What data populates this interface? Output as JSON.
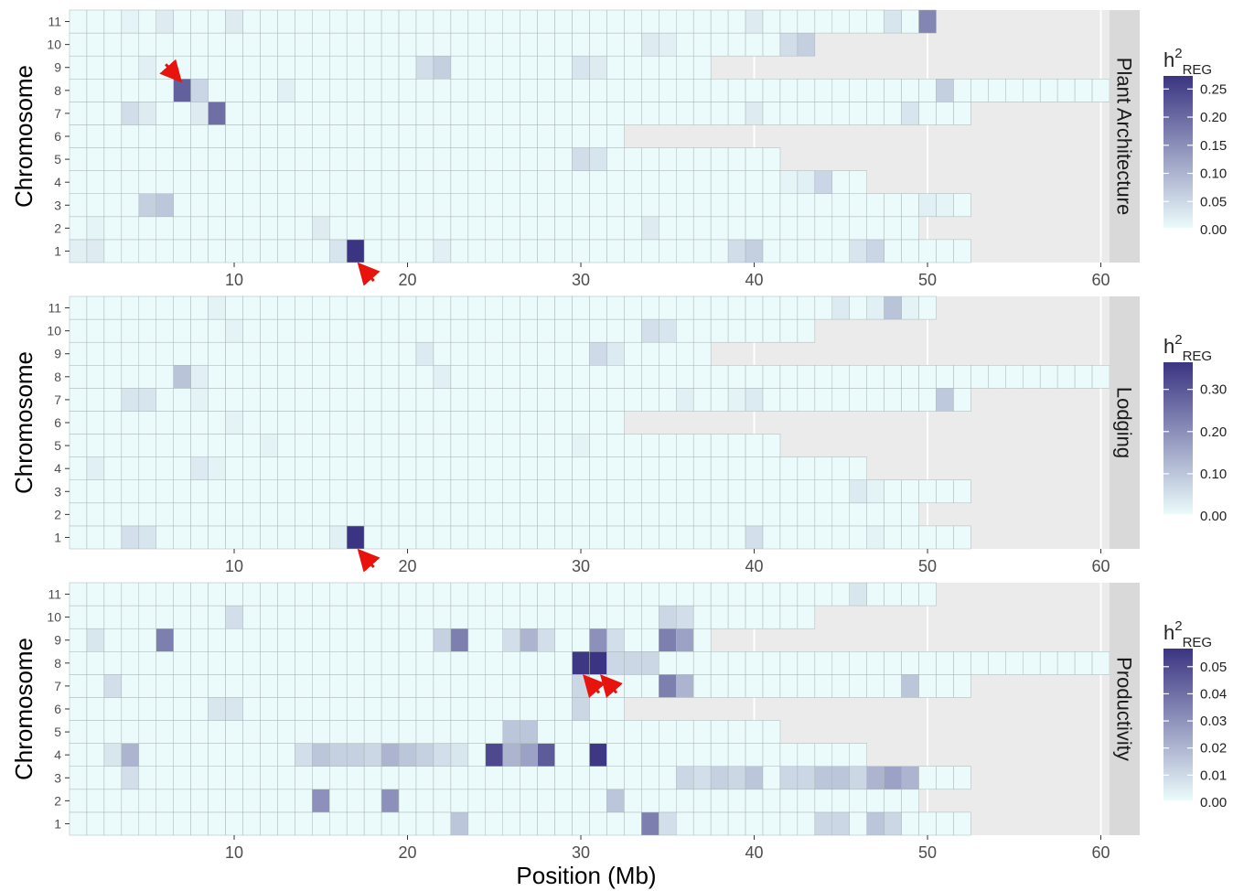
{
  "figure": {
    "ylabel": "Chromosome",
    "xlabel": "Position (Mb)"
  },
  "colors": {
    "low": "#ebfbfb",
    "high": "#3b3482",
    "missing": "#ebebeb",
    "strip": "#d9d9d9",
    "cell_border": "#a9b5b5",
    "arrow": "#e8130d"
  },
  "chart_data": [
    {
      "type": "heatmap",
      "panel_label": "Plant Architecture",
      "legend": {
        "title_main": "h",
        "title_sup": "2",
        "title_sub": "REG",
        "ticks": [
          "0.25",
          "0.20",
          "0.15",
          "0.10",
          "0.05",
          "0.00"
        ],
        "max": 0.27
      },
      "x_ticks": [
        10,
        20,
        30,
        40,
        50,
        60
      ],
      "y_ticks": [
        "1",
        "2",
        "3",
        "4",
        "5",
        "6",
        "7",
        "8",
        "9",
        "10",
        "11"
      ],
      "chromosome_length_mb": {
        "1": 52,
        "2": 49,
        "3": 52,
        "4": 46,
        "5": 41,
        "6": 32,
        "7": 52,
        "8": 60,
        "9": 37,
        "10": 43,
        "11": 50
      },
      "cells": [
        [
          1,
          17,
          0.27
        ],
        [
          1,
          40,
          0.06
        ],
        [
          1,
          39,
          0.04
        ],
        [
          1,
          47,
          0.05
        ],
        [
          1,
          46,
          0.03
        ],
        [
          1,
          16,
          0.03
        ],
        [
          1,
          2,
          0.02
        ],
        [
          1,
          1,
          0.015
        ],
        [
          1,
          22,
          0.015
        ],
        [
          2,
          15,
          0.02
        ],
        [
          2,
          34,
          0.02
        ],
        [
          2,
          2,
          0.01
        ],
        [
          3,
          5,
          0.06
        ],
        [
          3,
          6,
          0.07
        ],
        [
          3,
          50,
          0.015
        ],
        [
          3,
          51,
          0.01
        ],
        [
          4,
          44,
          0.05
        ],
        [
          4,
          43,
          0.015
        ],
        [
          4,
          42,
          0.01
        ],
        [
          5,
          30,
          0.04
        ],
        [
          5,
          31,
          0.03
        ],
        [
          7,
          9,
          0.19
        ],
        [
          7,
          4,
          0.04
        ],
        [
          7,
          8,
          0.02
        ],
        [
          7,
          5,
          0.02
        ],
        [
          7,
          40,
          0.02
        ],
        [
          7,
          49,
          0.03
        ],
        [
          8,
          7,
          0.21
        ],
        [
          8,
          8,
          0.05
        ],
        [
          8,
          51,
          0.06
        ],
        [
          8,
          13,
          0.015
        ],
        [
          9,
          21,
          0.04
        ],
        [
          9,
          22,
          0.06
        ],
        [
          9,
          30,
          0.03
        ],
        [
          9,
          31,
          0.02
        ],
        [
          9,
          5,
          0.015
        ],
        [
          10,
          42,
          0.04
        ],
        [
          10,
          43,
          0.06
        ],
        [
          10,
          34,
          0.02
        ],
        [
          10,
          35,
          0.015
        ],
        [
          11,
          50,
          0.16
        ],
        [
          11,
          48,
          0.03
        ],
        [
          11,
          40,
          0.02
        ],
        [
          11,
          10,
          0.02
        ],
        [
          11,
          6,
          0.02
        ],
        [
          11,
          4,
          0.01
        ]
      ],
      "arrows": [
        {
          "chr": 8,
          "pos": 7,
          "dir": "from-upper-left"
        },
        {
          "chr": 1,
          "pos": 17,
          "dir": "from-lower-right"
        }
      ]
    },
    {
      "type": "heatmap",
      "panel_label": "Lodging",
      "legend": {
        "title_main": "h",
        "title_sup": "2",
        "title_sub": "REG",
        "ticks": [
          "0.30",
          "0.20",
          "0.10",
          "0.00"
        ],
        "max": 0.36
      },
      "x_ticks": [
        10,
        20,
        30,
        40,
        50,
        60
      ],
      "y_ticks": [
        "1",
        "2",
        "3",
        "4",
        "5",
        "6",
        "7",
        "8",
        "9",
        "10",
        "11"
      ],
      "chromosome_length_mb": {
        "1": 52,
        "2": 49,
        "3": 52,
        "4": 46,
        "5": 41,
        "6": 32,
        "7": 52,
        "8": 60,
        "9": 37,
        "10": 43,
        "11": 50
      },
      "cells": [
        [
          1,
          17,
          0.36
        ],
        [
          1,
          4,
          0.05
        ],
        [
          1,
          5,
          0.04
        ],
        [
          1,
          40,
          0.05
        ],
        [
          1,
          16,
          0.02
        ],
        [
          1,
          47,
          0.015
        ],
        [
          3,
          46,
          0.03
        ],
        [
          3,
          47,
          0.015
        ],
        [
          4,
          2,
          0.02
        ],
        [
          4,
          8,
          0.03
        ],
        [
          4,
          9,
          0.015
        ],
        [
          5,
          12,
          0.015
        ],
        [
          5,
          30,
          0.015
        ],
        [
          6,
          10,
          0.015
        ],
        [
          7,
          4,
          0.04
        ],
        [
          7,
          5,
          0.04
        ],
        [
          7,
          51,
          0.09
        ],
        [
          7,
          36,
          0.02
        ],
        [
          7,
          40,
          0.03
        ],
        [
          7,
          39,
          0.015
        ],
        [
          7,
          8,
          0.015
        ],
        [
          8,
          7,
          0.1
        ],
        [
          8,
          8,
          0.02
        ],
        [
          8,
          22,
          0.02
        ],
        [
          9,
          21,
          0.03
        ],
        [
          9,
          31,
          0.06
        ],
        [
          9,
          32,
          0.03
        ],
        [
          10,
          34,
          0.05
        ],
        [
          10,
          35,
          0.04
        ],
        [
          10,
          10,
          0.015
        ],
        [
          11,
          48,
          0.1
        ],
        [
          11,
          45,
          0.03
        ],
        [
          11,
          47,
          0.02
        ],
        [
          11,
          49,
          0.015
        ],
        [
          11,
          9,
          0.015
        ]
      ],
      "arrows": [
        {
          "chr": 1,
          "pos": 17,
          "dir": "from-lower-right"
        }
      ]
    },
    {
      "type": "heatmap",
      "panel_label": "Productivity",
      "legend": {
        "title_main": "h",
        "title_sup": "2",
        "title_sub": "REG",
        "ticks": [
          "0.05",
          "0.04",
          "0.03",
          "0.02",
          "0.01",
          "0.00"
        ],
        "max": 0.056
      },
      "x_ticks": [
        10,
        20,
        30,
        40,
        50,
        60
      ],
      "y_ticks": [
        "1",
        "2",
        "3",
        "4",
        "5",
        "6",
        "7",
        "8",
        "9",
        "10",
        "11"
      ],
      "chromosome_length_mb": {
        "1": 52,
        "2": 49,
        "3": 52,
        "4": 46,
        "5": 41,
        "6": 32,
        "7": 52,
        "8": 60,
        "9": 37,
        "10": 43,
        "11": 50
      },
      "cells": [
        [
          1,
          34,
          0.035
        ],
        [
          1,
          23,
          0.015
        ],
        [
          1,
          47,
          0.015
        ],
        [
          1,
          45,
          0.01
        ],
        [
          1,
          48,
          0.01
        ],
        [
          1,
          44,
          0.01
        ],
        [
          1,
          35,
          0.008
        ],
        [
          2,
          15,
          0.03
        ],
        [
          2,
          19,
          0.03
        ],
        [
          2,
          32,
          0.015
        ],
        [
          3,
          40,
          0.015
        ],
        [
          3,
          47,
          0.02
        ],
        [
          3,
          48,
          0.025
        ],
        [
          3,
          49,
          0.02
        ],
        [
          3,
          45,
          0.015
        ],
        [
          3,
          44,
          0.015
        ],
        [
          3,
          43,
          0.01
        ],
        [
          3,
          4,
          0.008
        ],
        [
          3,
          36,
          0.01
        ],
        [
          3,
          37,
          0.008
        ],
        [
          3,
          38,
          0.012
        ],
        [
          3,
          39,
          0.01
        ],
        [
          3,
          42,
          0.01
        ],
        [
          3,
          46,
          0.01
        ],
        [
          4,
          25,
          0.05
        ],
        [
          4,
          28,
          0.045
        ],
        [
          4,
          31,
          0.055
        ],
        [
          4,
          26,
          0.02
        ],
        [
          4,
          27,
          0.025
        ],
        [
          4,
          19,
          0.02
        ],
        [
          4,
          20,
          0.015
        ],
        [
          4,
          4,
          0.02
        ],
        [
          4,
          15,
          0.015
        ],
        [
          4,
          16,
          0.012
        ],
        [
          4,
          17,
          0.012
        ],
        [
          4,
          18,
          0.01
        ],
        [
          4,
          21,
          0.012
        ],
        [
          4,
          22,
          0.008
        ],
        [
          4,
          3,
          0.006
        ],
        [
          4,
          14,
          0.008
        ],
        [
          4,
          23,
          0.006
        ],
        [
          5,
          26,
          0.015
        ],
        [
          5,
          27,
          0.015
        ],
        [
          6,
          30,
          0.01
        ],
        [
          6,
          9,
          0.006
        ],
        [
          6,
          10,
          0.006
        ],
        [
          7,
          35,
          0.035
        ],
        [
          7,
          36,
          0.02
        ],
        [
          7,
          49,
          0.015
        ],
        [
          7,
          3,
          0.008
        ],
        [
          7,
          30,
          0.01
        ],
        [
          8,
          30,
          0.055
        ],
        [
          8,
          31,
          0.056
        ],
        [
          8,
          33,
          0.01
        ],
        [
          8,
          34,
          0.01
        ],
        [
          8,
          32,
          0.01
        ],
        [
          9,
          6,
          0.035
        ],
        [
          9,
          23,
          0.035
        ],
        [
          9,
          35,
          0.035
        ],
        [
          9,
          31,
          0.03
        ],
        [
          9,
          27,
          0.02
        ],
        [
          9,
          36,
          0.025
        ],
        [
          9,
          22,
          0.012
        ],
        [
          9,
          2,
          0.006
        ],
        [
          9,
          26,
          0.008
        ],
        [
          9,
          28,
          0.008
        ],
        [
          9,
          32,
          0.008
        ],
        [
          10,
          35,
          0.01
        ],
        [
          10,
          36,
          0.008
        ],
        [
          10,
          10,
          0.008
        ],
        [
          11,
          46,
          0.006
        ]
      ],
      "arrows": [
        {
          "chr": 8,
          "pos": 30,
          "dir": "from-lower-right"
        },
        {
          "chr": 8,
          "pos": 31,
          "dir": "from-lower-right"
        }
      ]
    }
  ]
}
